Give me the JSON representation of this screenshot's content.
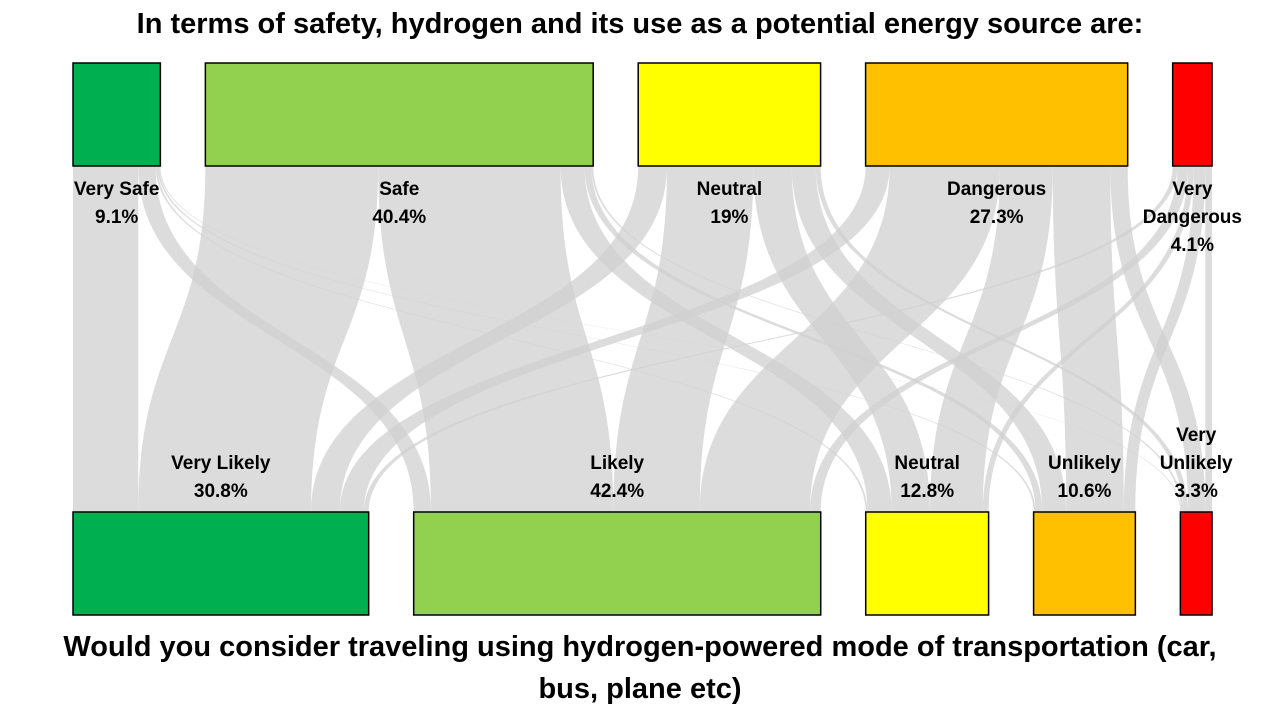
{
  "chart_data": {
    "type": "sankey",
    "title": "In terms of safety, hydrogen and its use as a potential energy source are:",
    "bottom_title": "Would you consider traveling using hydrogen-powered mode of transportation (car, bus, plane etc)",
    "sources": [
      {
        "name": "Very Safe",
        "value": 9.1,
        "value_label": "9.1%",
        "color": "#00b050"
      },
      {
        "name": "Safe",
        "value": 40.4,
        "value_label": "40.4%",
        "color": "#92d050"
      },
      {
        "name": "Neutral",
        "value": 19,
        "value_label": "19%",
        "color": "#ffff00"
      },
      {
        "name": "Dangerous",
        "value": 27.3,
        "value_label": "27.3%",
        "color": "#ffc000"
      },
      {
        "name": "Very Dangerous",
        "value": 4.1,
        "value_label": "4.1%",
        "color": "#ff0000"
      }
    ],
    "targets": [
      {
        "name": "Very Likely",
        "value": 30.8,
        "value_label": "30.8%",
        "color": "#00b050"
      },
      {
        "name": "Likely",
        "value": 42.4,
        "value_label": "42.4%",
        "color": "#92d050"
      },
      {
        "name": "Neutral",
        "value": 12.8,
        "value_label": "12.8%",
        "color": "#ffff00"
      },
      {
        "name": "Unlikely",
        "value": 10.6,
        "value_label": "10.6%",
        "color": "#ffc000"
      },
      {
        "name": "Very Unlikely",
        "value": 3.3,
        "value_label": "3.3%",
        "color": "#ff0000"
      }
    ],
    "flows": [
      [
        6.8,
        1.8,
        0.2,
        0.2,
        0.1
      ],
      [
        18,
        19,
        2.5,
        0.7,
        0.2
      ],
      [
        3,
        9,
        4,
        2.5,
        0.5
      ],
      [
        2.5,
        11.5,
        5.5,
        6,
        1.8
      ],
      [
        0.5,
        1.1,
        0.6,
        1.2,
        0.7
      ]
    ],
    "link_color": "#d0d0d0"
  }
}
